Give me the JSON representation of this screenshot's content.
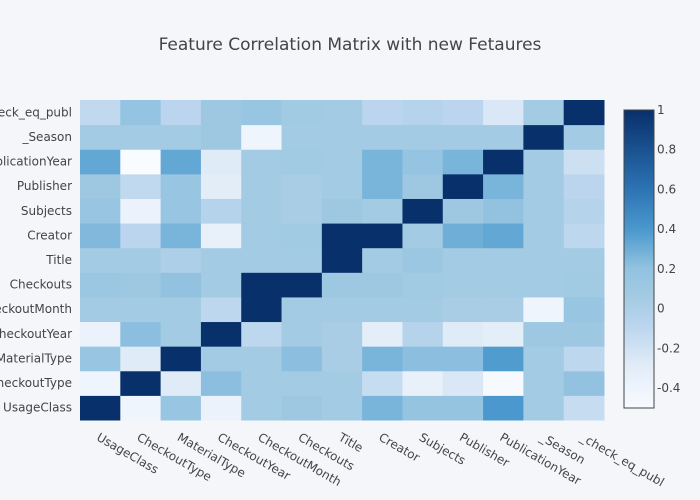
{
  "chart_data": {
    "type": "heatmap",
    "title": "Feature Correlation Matrix with new Fetaures",
    "x_categories": [
      "UsageClass",
      "CheckoutType",
      "MaterialType",
      "CheckoutYear",
      "CheckoutMonth",
      "Checkouts",
      "Title",
      "Creator",
      "Subjects",
      "Publisher",
      "PublicationYear",
      "_Season",
      "_check_eq_publ"
    ],
    "y_categories": [
      "UsageClass",
      "CheckoutType",
      "MaterialType",
      "CheckoutYear",
      "CheckoutMonth",
      "Checkouts",
      "Title",
      "Creator",
      "Subjects",
      "Publisher",
      "PublicationYear",
      "_Season",
      "_check_eq_publ"
    ],
    "y_tick_labels": [
      "UsageClass",
      "heckoutType",
      "MaterialType",
      "CheckoutYear",
      "heckoutMonth",
      "Checkouts",
      "Title",
      "Creator",
      "Subjects",
      "Publisher",
      "blicationYear",
      "_Season",
      "heck_eq_publ"
    ],
    "z": [
      [
        1.0,
        -0.42,
        0.15,
        -0.38,
        0.06,
        0.1,
        0.06,
        0.27,
        0.17,
        0.17,
        0.4,
        0.06,
        -0.15
      ],
      [
        -0.42,
        1.0,
        -0.28,
        0.22,
        0.06,
        0.06,
        0.06,
        -0.15,
        -0.35,
        -0.25,
        -0.48,
        0.06,
        0.2
      ],
      [
        0.15,
        -0.28,
        1.0,
        0.06,
        0.06,
        0.22,
        0.03,
        0.27,
        0.22,
        0.22,
        0.38,
        0.06,
        -0.1
      ],
      [
        -0.38,
        0.22,
        0.06,
        1.0,
        -0.1,
        0.06,
        0.03,
        -0.32,
        -0.05,
        -0.28,
        -0.32,
        0.1,
        0.1
      ],
      [
        0.06,
        0.06,
        0.06,
        -0.1,
        1.0,
        0.06,
        0.06,
        0.06,
        0.06,
        0.03,
        0.03,
        -0.42,
        0.15
      ],
      [
        0.12,
        0.1,
        0.2,
        0.06,
        1.0,
        1.0,
        0.1,
        0.1,
        0.08,
        0.06,
        0.06,
        0.06,
        0.08
      ],
      [
        0.06,
        0.06,
        0.0,
        0.06,
        0.06,
        0.06,
        1.0,
        0.06,
        0.12,
        0.06,
        0.06,
        0.06,
        0.06
      ],
      [
        0.25,
        -0.08,
        0.27,
        -0.35,
        0.06,
        0.08,
        1.0,
        1.0,
        0.06,
        0.3,
        0.33,
        0.06,
        -0.1
      ],
      [
        0.15,
        -0.38,
        0.15,
        -0.05,
        0.06,
        0.03,
        0.1,
        0.06,
        1.0,
        0.1,
        0.2,
        0.06,
        -0.05
      ],
      [
        0.1,
        -0.12,
        0.15,
        -0.3,
        0.06,
        0.03,
        0.06,
        0.27,
        0.1,
        1.0,
        0.27,
        0.06,
        -0.08
      ],
      [
        0.33,
        -0.5,
        0.33,
        -0.28,
        0.06,
        0.08,
        0.06,
        0.27,
        0.18,
        0.27,
        1.0,
        0.06,
        -0.18
      ],
      [
        0.06,
        0.06,
        0.06,
        0.1,
        -0.42,
        0.06,
        0.06,
        0.06,
        0.06,
        0.06,
        0.06,
        1.0,
        0.06
      ],
      [
        -0.12,
        0.18,
        -0.08,
        0.1,
        0.15,
        0.08,
        0.06,
        -0.08,
        -0.05,
        -0.08,
        -0.25,
        0.06,
        1.0
      ]
    ],
    "zmin": -0.5,
    "zmax": 1.0,
    "colorscale": [
      [
        0.0,
        "#f8fbff"
      ],
      [
        0.14,
        "#e1ecf8"
      ],
      [
        0.27,
        "#bcd6ee"
      ],
      [
        0.37,
        "#a4cbe3"
      ],
      [
        0.47,
        "#91c2e0"
      ],
      [
        0.6,
        "#4a98cd"
      ],
      [
        0.75,
        "#2a6fb0"
      ],
      [
        1.0,
        "#08306b"
      ]
    ],
    "colorbar_ticks": [
      1,
      0.8,
      0.6,
      0.4,
      0.2,
      0,
      -0.2,
      -0.4
    ],
    "grid": false
  }
}
